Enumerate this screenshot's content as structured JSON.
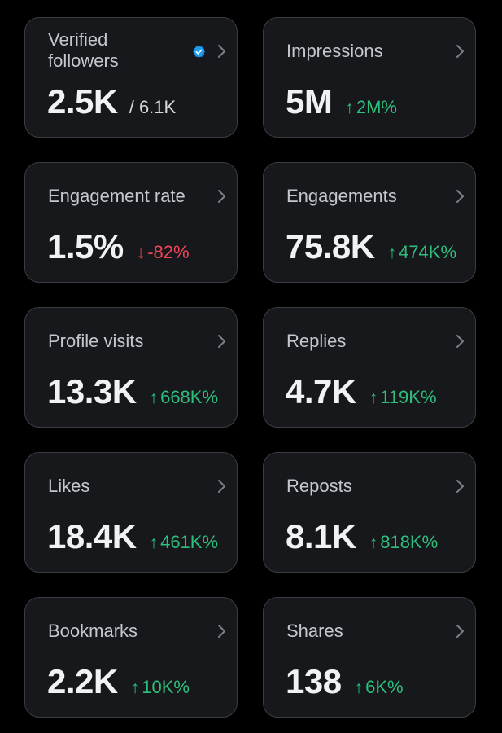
{
  "colors": {
    "background": "#000000",
    "card": "#16181c",
    "up": "#2fbf7d",
    "down": "#f4445a",
    "verified": "#1d9bf0"
  },
  "cards": [
    {
      "title": "Verified followers",
      "value": "2.5K",
      "sub": "/ 6.1K",
      "icon": "verified-badge-icon"
    },
    {
      "title": "Impressions",
      "value": "5M",
      "arrow": "↑",
      "change": "2M%",
      "direction": "up"
    },
    {
      "title": "Engagement rate",
      "value": "1.5%",
      "arrow": "↓",
      "change": "-82%",
      "direction": "down"
    },
    {
      "title": "Engagements",
      "value": "75.8K",
      "arrow": "↑",
      "change": "474K%",
      "direction": "up"
    },
    {
      "title": "Profile visits",
      "value": "13.3K",
      "arrow": "↑",
      "change": "668K%",
      "direction": "up"
    },
    {
      "title": "Replies",
      "value": "4.7K",
      "arrow": "↑",
      "change": "119K%",
      "direction": "up"
    },
    {
      "title": "Likes",
      "value": "18.4K",
      "arrow": "↑",
      "change": "461K%",
      "direction": "up"
    },
    {
      "title": "Reposts",
      "value": "8.1K",
      "arrow": "↑",
      "change": "818K%",
      "direction": "up"
    },
    {
      "title": "Bookmarks",
      "value": "2.2K",
      "arrow": "↑",
      "change": "10K%",
      "direction": "up"
    },
    {
      "title": "Shares",
      "value": "138",
      "arrow": "↑",
      "change": "6K%",
      "direction": "up"
    }
  ]
}
